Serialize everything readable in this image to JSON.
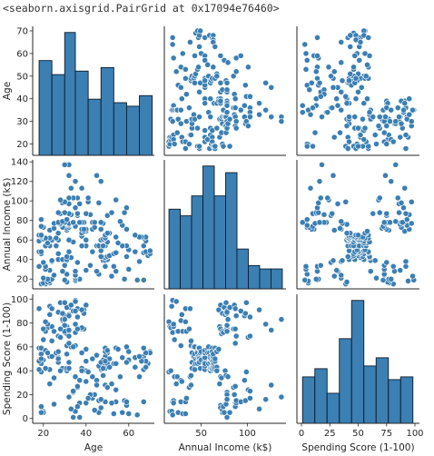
{
  "output_repr": "<seaborn.axisgrid.PairGrid at 0x17094e76460>",
  "colors": {
    "fill": "#3b7fb3",
    "hist_edge": "#0d1b2a",
    "point_edge": "#ffffff",
    "axes": "#262626"
  },
  "chart_data": {
    "type": "pairgrid",
    "variables": [
      {
        "name": "Age",
        "lim": [
          15,
          72
        ],
        "ticks": [
          20,
          30,
          40,
          50,
          60,
          70
        ],
        "x_ticks": [
          20,
          40,
          60
        ],
        "bin_edges": [
          18,
          24,
          30,
          35,
          41,
          47,
          53,
          59,
          65,
          71
        ],
        "counts": [
          27,
          23,
          35,
          24,
          16,
          25,
          15,
          14,
          17
        ]
      },
      {
        "name": "Annual Income (k$)",
        "lim": [
          10,
          142
        ],
        "ticks": [
          20,
          40,
          60,
          80,
          100,
          120,
          140
        ],
        "x_ticks": [
          50,
          100
        ],
        "bin_edges": [
          15,
          27.3,
          39.6,
          51.9,
          64.2,
          76.5,
          88.8,
          101.1,
          113.4,
          125.7,
          138
        ],
        "counts": [
          24,
          22,
          28,
          37,
          28,
          35,
          12,
          7,
          6,
          6
        ]
      },
      {
        "name": "Spending Score (1-100)",
        "lim": [
          -4,
          104
        ],
        "ticks": [
          0,
          20,
          40,
          60,
          80,
          100
        ],
        "x_ticks": [
          0,
          25,
          50,
          75,
          100
        ],
        "bin_edges": [
          1,
          11.8,
          22.6,
          33.4,
          44.2,
          55,
          65.8,
          76.6,
          87.4,
          98.2
        ],
        "counts": [
          17,
          20,
          11,
          31,
          45,
          21,
          24,
          16,
          17
        ]
      }
    ],
    "points": [
      [
        19,
        15,
        39
      ],
      [
        21,
        15,
        81
      ],
      [
        20,
        16,
        6
      ],
      [
        23,
        16,
        77
      ],
      [
        31,
        17,
        40
      ],
      [
        22,
        17,
        76
      ],
      [
        35,
        18,
        6
      ],
      [
        23,
        18,
        94
      ],
      [
        64,
        19,
        3
      ],
      [
        30,
        19,
        72
      ],
      [
        67,
        19,
        14
      ],
      [
        35,
        19,
        99
      ],
      [
        58,
        20,
        15
      ],
      [
        24,
        20,
        77
      ],
      [
        37,
        20,
        13
      ],
      [
        22,
        20,
        79
      ],
      [
        35,
        21,
        35
      ],
      [
        20,
        21,
        66
      ],
      [
        52,
        23,
        29
      ],
      [
        35,
        23,
        98
      ],
      [
        35,
        24,
        35
      ],
      [
        25,
        24,
        73
      ],
      [
        46,
        25,
        5
      ],
      [
        31,
        25,
        73
      ],
      [
        54,
        28,
        14
      ],
      [
        29,
        28,
        82
      ],
      [
        45,
        28,
        32
      ],
      [
        35,
        28,
        61
      ],
      [
        40,
        29,
        31
      ],
      [
        23,
        29,
        87
      ],
      [
        60,
        30,
        4
      ],
      [
        21,
        30,
        73
      ],
      [
        53,
        33,
        4
      ],
      [
        18,
        33,
        92
      ],
      [
        49,
        33,
        14
      ],
      [
        21,
        33,
        81
      ],
      [
        42,
        34,
        17
      ],
      [
        30,
        34,
        73
      ],
      [
        36,
        37,
        26
      ],
      [
        20,
        37,
        75
      ],
      [
        65,
        38,
        35
      ],
      [
        24,
        38,
        92
      ],
      [
        48,
        39,
        36
      ],
      [
        31,
        39,
        61
      ],
      [
        49,
        39,
        28
      ],
      [
        24,
        39,
        65
      ],
      [
        50,
        40,
        55
      ],
      [
        27,
        40,
        47
      ],
      [
        29,
        40,
        42
      ],
      [
        31,
        40,
        42
      ],
      [
        49,
        42,
        52
      ],
      [
        33,
        42,
        60
      ],
      [
        31,
        43,
        54
      ],
      [
        59,
        43,
        60
      ],
      [
        50,
        43,
        45
      ],
      [
        47,
        43,
        41
      ],
      [
        51,
        44,
        50
      ],
      [
        69,
        44,
        46
      ],
      [
        27,
        46,
        51
      ],
      [
        53,
        46,
        46
      ],
      [
        70,
        46,
        56
      ],
      [
        19,
        46,
        55
      ],
      [
        67,
        47,
        52
      ],
      [
        54,
        47,
        59
      ],
      [
        63,
        48,
        51
      ],
      [
        18,
        48,
        59
      ],
      [
        43,
        48,
        50
      ],
      [
        68,
        48,
        48
      ],
      [
        19,
        48,
        59
      ],
      [
        32,
        48,
        47
      ],
      [
        70,
        49,
        55
      ],
      [
        47,
        49,
        42
      ],
      [
        60,
        50,
        49
      ],
      [
        60,
        50,
        56
      ],
      [
        59,
        54,
        47
      ],
      [
        26,
        54,
        54
      ],
      [
        45,
        54,
        53
      ],
      [
        40,
        54,
        48
      ],
      [
        23,
        54,
        52
      ],
      [
        49,
        54,
        42
      ],
      [
        57,
        54,
        51
      ],
      [
        38,
        54,
        55
      ],
      [
        67,
        54,
        41
      ],
      [
        46,
        54,
        44
      ],
      [
        21,
        54,
        57
      ],
      [
        48,
        54,
        46
      ],
      [
        55,
        57,
        58
      ],
      [
        22,
        57,
        55
      ],
      [
        34,
        58,
        60
      ],
      [
        50,
        58,
        46
      ],
      [
        68,
        59,
        55
      ],
      [
        18,
        59,
        41
      ],
      [
        48,
        60,
        49
      ],
      [
        40,
        60,
        40
      ],
      [
        32,
        60,
        42
      ],
      [
        24,
        60,
        52
      ],
      [
        47,
        60,
        47
      ],
      [
        27,
        60,
        50
      ],
      [
        48,
        61,
        42
      ],
      [
        20,
        61,
        49
      ],
      [
        23,
        62,
        41
      ],
      [
        49,
        62,
        48
      ],
      [
        67,
        62,
        59
      ],
      [
        26,
        62,
        55
      ],
      [
        49,
        62,
        56
      ],
      [
        21,
        62,
        42
      ],
      [
        66,
        63,
        50
      ],
      [
        54,
        63,
        46
      ],
      [
        68,
        63,
        43
      ],
      [
        66,
        63,
        48
      ],
      [
        65,
        63,
        52
      ],
      [
        19,
        63,
        54
      ],
      [
        38,
        64,
        42
      ],
      [
        19,
        64,
        46
      ],
      [
        18,
        65,
        48
      ],
      [
        19,
        65,
        50
      ],
      [
        63,
        65,
        43
      ],
      [
        49,
        65,
        59
      ],
      [
        51,
        67,
        43
      ],
      [
        50,
        67,
        57
      ],
      [
        27,
        67,
        56
      ],
      [
        38,
        67,
        40
      ],
      [
        40,
        69,
        58
      ],
      [
        39,
        69,
        91
      ],
      [
        23,
        70,
        29
      ],
      [
        31,
        70,
        77
      ],
      [
        43,
        71,
        35
      ],
      [
        40,
        71,
        95
      ],
      [
        59,
        71,
        11
      ],
      [
        38,
        71,
        75
      ],
      [
        47,
        71,
        9
      ],
      [
        39,
        71,
        75
      ],
      [
        25,
        72,
        34
      ],
      [
        31,
        72,
        71
      ],
      [
        20,
        73,
        5
      ],
      [
        29,
        73,
        88
      ],
      [
        44,
        73,
        7
      ],
      [
        32,
        73,
        73
      ],
      [
        19,
        74,
        10
      ],
      [
        35,
        74,
        72
      ],
      [
        57,
        75,
        5
      ],
      [
        32,
        75,
        93
      ],
      [
        28,
        76,
        40
      ],
      [
        32,
        76,
        87
      ],
      [
        25,
        77,
        12
      ],
      [
        28,
        77,
        97
      ],
      [
        48,
        77,
        36
      ],
      [
        32,
        77,
        74
      ],
      [
        34,
        78,
        22
      ],
      [
        34,
        78,
        90
      ],
      [
        43,
        78,
        17
      ],
      [
        39,
        78,
        88
      ],
      [
        44,
        78,
        20
      ],
      [
        38,
        78,
        76
      ],
      [
        47,
        78,
        16
      ],
      [
        27,
        78,
        89
      ],
      [
        37,
        78,
        1
      ],
      [
        30,
        78,
        78
      ],
      [
        34,
        78,
        1
      ],
      [
        30,
        78,
        73
      ],
      [
        56,
        79,
        35
      ],
      [
        29,
        79,
        83
      ],
      [
        19,
        81,
        5
      ],
      [
        31,
        81,
        93
      ],
      [
        50,
        85,
        26
      ],
      [
        36,
        85,
        75
      ],
      [
        42,
        86,
        20
      ],
      [
        33,
        86,
        95
      ],
      [
        36,
        87,
        27
      ],
      [
        32,
        87,
        63
      ],
      [
        40,
        87,
        13
      ],
      [
        28,
        87,
        75
      ],
      [
        36,
        87,
        10
      ],
      [
        36,
        87,
        92
      ],
      [
        52,
        88,
        13
      ],
      [
        30,
        88,
        86
      ],
      [
        58,
        88,
        15
      ],
      [
        27,
        88,
        69
      ],
      [
        59,
        93,
        14
      ],
      [
        35,
        93,
        90
      ],
      [
        37,
        97,
        32
      ],
      [
        32,
        97,
        86
      ],
      [
        46,
        98,
        15
      ],
      [
        29,
        98,
        88
      ],
      [
        41,
        99,
        39
      ],
      [
        30,
        99,
        97
      ],
      [
        54,
        101,
        24
      ],
      [
        28,
        101,
        68
      ],
      [
        41,
        103,
        17
      ],
      [
        36,
        103,
        85
      ],
      [
        34,
        103,
        23
      ],
      [
        32,
        103,
        69
      ],
      [
        33,
        113,
        8
      ],
      [
        38,
        113,
        91
      ],
      [
        47,
        120,
        16
      ],
      [
        35,
        120,
        79
      ],
      [
        45,
        126,
        28
      ],
      [
        32,
        126,
        74
      ],
      [
        32,
        137,
        18
      ],
      [
        30,
        137,
        83
      ]
    ]
  }
}
